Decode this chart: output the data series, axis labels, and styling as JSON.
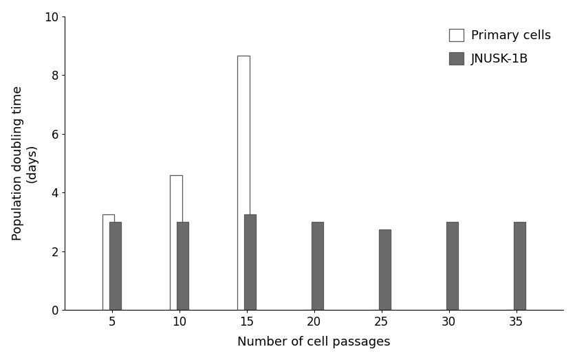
{
  "passages": [
    5,
    10,
    15,
    20,
    25,
    30,
    35
  ],
  "primary_cells": [
    3.25,
    4.6,
    8.65,
    0,
    0,
    0,
    0
  ],
  "jnusk1b": [
    3.0,
    3.0,
    3.25,
    3.0,
    2.75,
    3.0,
    3.0
  ],
  "primary_color": "#ffffff",
  "primary_edgecolor": "#555555",
  "jnusk_color": "#6b6b6b",
  "jnusk_edgecolor": "#555555",
  "ylabel": "Population doubling time\n(days)",
  "xlabel": "Number of cell passages",
  "ylim": [
    0,
    10
  ],
  "yticks": [
    0,
    2,
    4,
    6,
    8,
    10
  ],
  "legend_labels": [
    "Primary cells",
    "JNUSK-1B"
  ],
  "background_color": "#ffffff",
  "label_fontsize": 13,
  "tick_fontsize": 12,
  "legend_fontsize": 13
}
